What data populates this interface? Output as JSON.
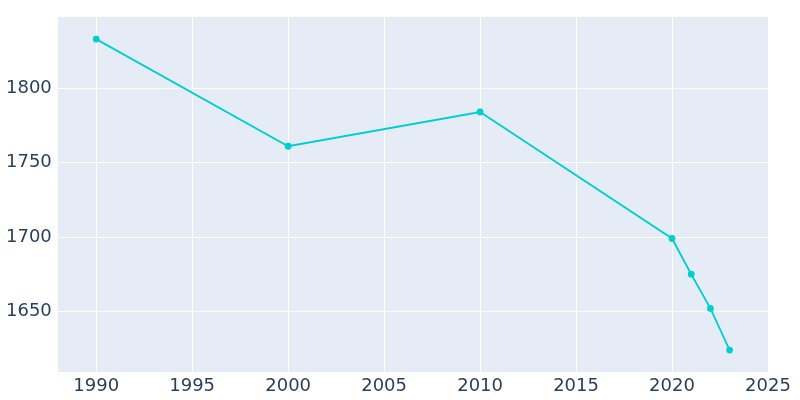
{
  "chart_data": {
    "type": "line",
    "x": [
      1990,
      2000,
      2010,
      2020,
      2021,
      2022,
      2023
    ],
    "values": [
      1833,
      1761,
      1784,
      1699,
      1675,
      1652,
      1624
    ],
    "color": "#00ced1",
    "marker": "circle",
    "xlim": [
      1988,
      2025
    ],
    "xticks": [
      1990,
      1995,
      2000,
      2005,
      2010,
      2015,
      2020,
      2025
    ],
    "ylim": [
      1609,
      1848
    ],
    "yticks": [
      1650,
      1700,
      1750,
      1800
    ],
    "grid": true
  }
}
